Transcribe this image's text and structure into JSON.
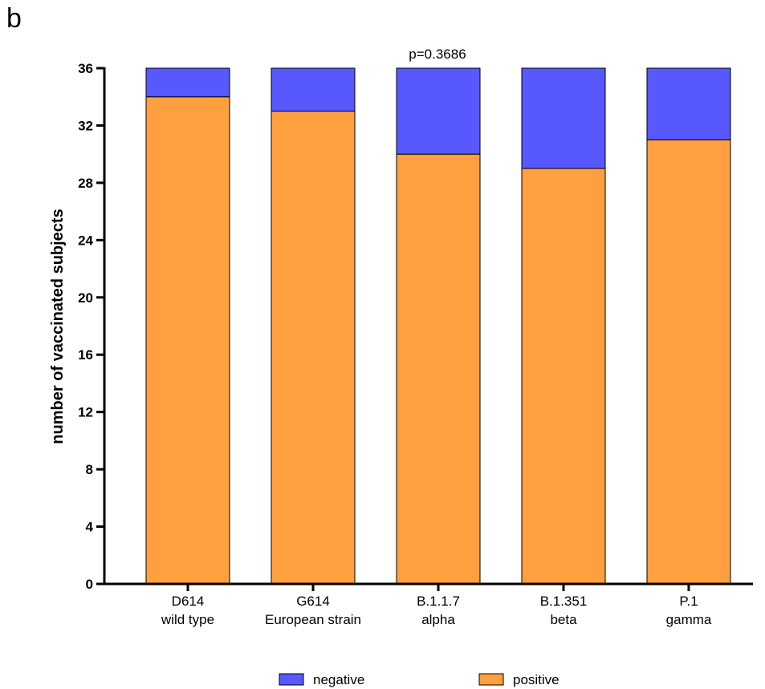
{
  "panel_label": "b",
  "chart_data": {
    "type": "bar",
    "stacked": true,
    "categories": [
      [
        "D614",
        "wild type"
      ],
      [
        "G614",
        "European strain"
      ],
      [
        "B.1.1.7",
        "alpha"
      ],
      [
        "B.1.351",
        "beta"
      ],
      [
        "P.1",
        "gamma"
      ]
    ],
    "series": [
      {
        "name": "positive",
        "color": "#FFA040",
        "values": [
          34,
          33,
          30,
          29,
          31
        ]
      },
      {
        "name": "negative",
        "color": "#5858FF",
        "values": [
          2,
          3,
          6,
          7,
          5
        ]
      }
    ],
    "ylabel": "number of vaccinated subjects",
    "ylim": [
      0,
      36
    ],
    "yticks": [
      0,
      4,
      8,
      12,
      16,
      20,
      24,
      28,
      32,
      36
    ],
    "annotation": "p=0.3686",
    "legend": {
      "placement": "bottom",
      "order": [
        "negative",
        "positive"
      ]
    },
    "grid": false
  }
}
